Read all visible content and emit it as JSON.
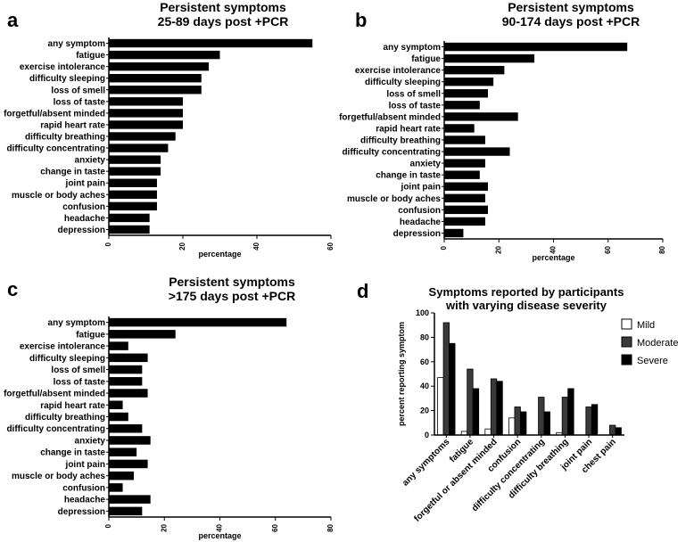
{
  "panels": {
    "a": {
      "letter": "a",
      "title1": "Persistent symptoms",
      "title2": "25-89 days post +PCR"
    },
    "b": {
      "letter": "b",
      "title1": "Persistent symptoms",
      "title2": "90-174 days post +PCR"
    },
    "c": {
      "letter": "c",
      "title1": "Persistent symptoms",
      "title2": ">175 days post +PCR"
    },
    "d": {
      "letter": "d",
      "title1": "Symptoms reported by participants",
      "title2": "with varying disease severity"
    }
  },
  "chart_data": [
    {
      "id": "a",
      "type": "bar",
      "orientation": "horizontal",
      "title": "Persistent symptoms 25-89 days post +PCR",
      "xlabel": "percentage",
      "xlim": [
        0,
        60
      ],
      "xticks": [
        0,
        20,
        40,
        60
      ],
      "categories": [
        "any symptom",
        "fatigue",
        "exercise intolerance",
        "difficulty sleeping",
        "loss of smell",
        "loss of taste",
        "forgetful/absent minded",
        "rapid heart rate",
        "difficulty breathing",
        "difficulty concentrating",
        "anxiety",
        "change in taste",
        "joint pain",
        "muscle or body aches",
        "confusion",
        "headache",
        "depression"
      ],
      "values": [
        55,
        30,
        27,
        25,
        25,
        20,
        20,
        20,
        18,
        16,
        14,
        14,
        13,
        13,
        13,
        11,
        11
      ]
    },
    {
      "id": "b",
      "type": "bar",
      "orientation": "horizontal",
      "title": "Persistent symptoms 90-174 days post +PCR",
      "xlabel": "percentage",
      "xlim": [
        0,
        80
      ],
      "xticks": [
        0,
        20,
        40,
        60,
        80
      ],
      "categories": [
        "any symptom",
        "fatigue",
        "exercise intolerance",
        "difficulty sleeping",
        "loss of smell",
        "loss of taste",
        "forgetful/absent minded",
        "rapid heart rate",
        "difficulty breathing",
        "difficulty concentrating",
        "anxiety",
        "change in taste",
        "joint pain",
        "muscle or body aches",
        "confusion",
        "headache",
        "depression"
      ],
      "values": [
        67,
        33,
        22,
        18,
        16,
        13,
        27,
        11,
        15,
        24,
        15,
        13,
        16,
        15,
        16,
        15,
        7
      ]
    },
    {
      "id": "c",
      "type": "bar",
      "orientation": "horizontal",
      "title": "Persistent symptoms >175 days post +PCR",
      "xlabel": "percentage",
      "xlim": [
        0,
        80
      ],
      "xticks": [
        0,
        20,
        40,
        60,
        80
      ],
      "categories": [
        "any symptom",
        "fatigue",
        "exercise intolerance",
        "difficulty sleeping",
        "loss of smell",
        "loss of taste",
        "forgetful/absent minded",
        "rapid heart rate",
        "difficulty breathing",
        "difficulty concentrating",
        "anxiety",
        "change in taste",
        "joint pain",
        "muscle or body aches",
        "confusion",
        "headache",
        "depression"
      ],
      "values": [
        64,
        24,
        7,
        14,
        12,
        12,
        14,
        5,
        7,
        12,
        15,
        10,
        14,
        9,
        5,
        15,
        12
      ]
    },
    {
      "id": "d",
      "type": "bar",
      "orientation": "vertical",
      "title": "Symptoms reported by participants with varying disease severity",
      "ylabel": "percent reporting symptom",
      "ylim": [
        0,
        100
      ],
      "yticks": [
        0,
        20,
        40,
        60,
        80,
        100
      ],
      "legend_position": "top-right",
      "categories": [
        "any symptoms",
        "fatigue",
        "forgetful or absent minded",
        "confusion",
        "difficulty concentrating",
        "difficulty breathing",
        "joint pain",
        "chest pain"
      ],
      "series": [
        {
          "name": "Mild",
          "color": "#ffffff",
          "values": [
            47,
            3,
            5,
            14,
            0,
            2,
            0,
            0
          ]
        },
        {
          "name": "Moderate",
          "color": "#3a3a3a",
          "values": [
            92,
            54,
            46,
            23,
            31,
            31,
            23,
            8
          ]
        },
        {
          "name": "Severe",
          "color": "#000000",
          "values": [
            75,
            38,
            44,
            19,
            19,
            38,
            25,
            6
          ]
        }
      ]
    }
  ]
}
